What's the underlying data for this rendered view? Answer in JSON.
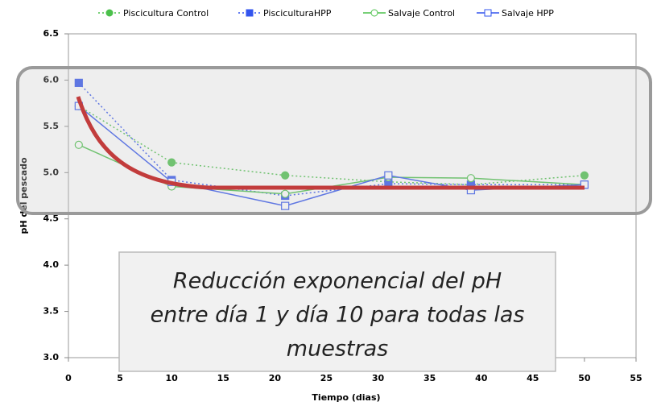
{
  "chart_data": {
    "type": "line",
    "xlabel": "Tiempo (dias)",
    "ylabel": "pH del pescado",
    "x": [
      1,
      10,
      21,
      31,
      39,
      50
    ],
    "series": [
      {
        "name": "Piscicultura Control",
        "color": "#4cc04c",
        "dash": true,
        "marker": "circle",
        "filled": true,
        "values": [
          5.72,
          5.11,
          4.97,
          4.9,
          4.87,
          4.97
        ]
      },
      {
        "name": "PisciculturaHPP",
        "color": "#3355ee",
        "dash": true,
        "marker": "square",
        "filled": true,
        "values": [
          5.97,
          4.92,
          4.75,
          4.88,
          4.87,
          4.87
        ]
      },
      {
        "name": "Salvaje Control",
        "color": "#4cc04c",
        "dash": false,
        "marker": "circle",
        "filled": false,
        "values": [
          5.3,
          4.85,
          4.77,
          4.95,
          4.94,
          4.87
        ]
      },
      {
        "name": "Salvaje HPP",
        "color": "#3355ee",
        "dash": false,
        "marker": "square",
        "filled": false,
        "values": [
          5.72,
          4.9,
          4.64,
          4.97,
          4.81,
          4.87
        ]
      }
    ],
    "xlim": [
      0,
      55
    ],
    "xticks": [
      0,
      5,
      10,
      15,
      20,
      25,
      30,
      35,
      40,
      45,
      50,
      55
    ],
    "ylim": [
      3,
      6.5
    ],
    "yticks": [
      {
        "value": 3,
        "label": "3.0"
      },
      {
        "value": 3.5,
        "label": "3.5"
      },
      {
        "value": 4,
        "label": "4.0"
      },
      {
        "value": 4.5,
        "label": "4.5"
      },
      {
        "value": 5,
        "label": "5.0"
      },
      {
        "value": 5.5,
        "label": "5.5"
      },
      {
        "value": 6,
        "label": "6.0"
      },
      {
        "value": 6.5,
        "label": "6.5"
      }
    ],
    "annotation": [
      "Reducción exponencial del pH",
      "entre día 1 y día 10 para todas las",
      "muestras"
    ]
  }
}
